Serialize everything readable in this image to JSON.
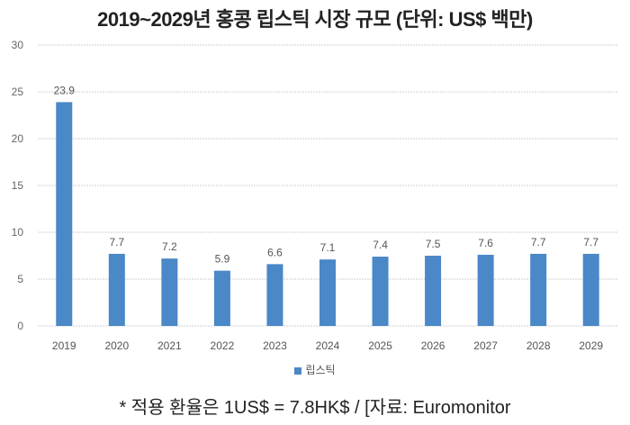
{
  "chart_data": {
    "type": "bar",
    "title": "2019~2029년 홍콩 립스틱 시장 규모 (단위: US$ 백만)",
    "categories": [
      "2019",
      "2020",
      "2021",
      "2022",
      "2023",
      "2024",
      "2025",
      "2026",
      "2027",
      "2028",
      "2029"
    ],
    "series": [
      {
        "name": "립스틱",
        "values": [
          23.9,
          7.7,
          7.2,
          5.9,
          6.6,
          7.1,
          7.4,
          7.5,
          7.6,
          7.7,
          7.7
        ]
      }
    ],
    "data_labels": [
      "23.9",
      "7.7",
      "7.2",
      "5.9",
      "6.6",
      "7.1",
      "7.4",
      "7.5",
      "7.6",
      "7.7",
      "7.7"
    ],
    "ylim": [
      0,
      30
    ],
    "yticks": [
      0,
      5,
      10,
      15,
      20,
      25,
      30
    ],
    "grid": true,
    "legend": "bottom",
    "xlabel": "",
    "ylabel": "",
    "bar_color": "#4a88c7"
  },
  "footnote": "* 적용 환율은 1US$ = 7.8HK$ / [자료: Euromonitor"
}
